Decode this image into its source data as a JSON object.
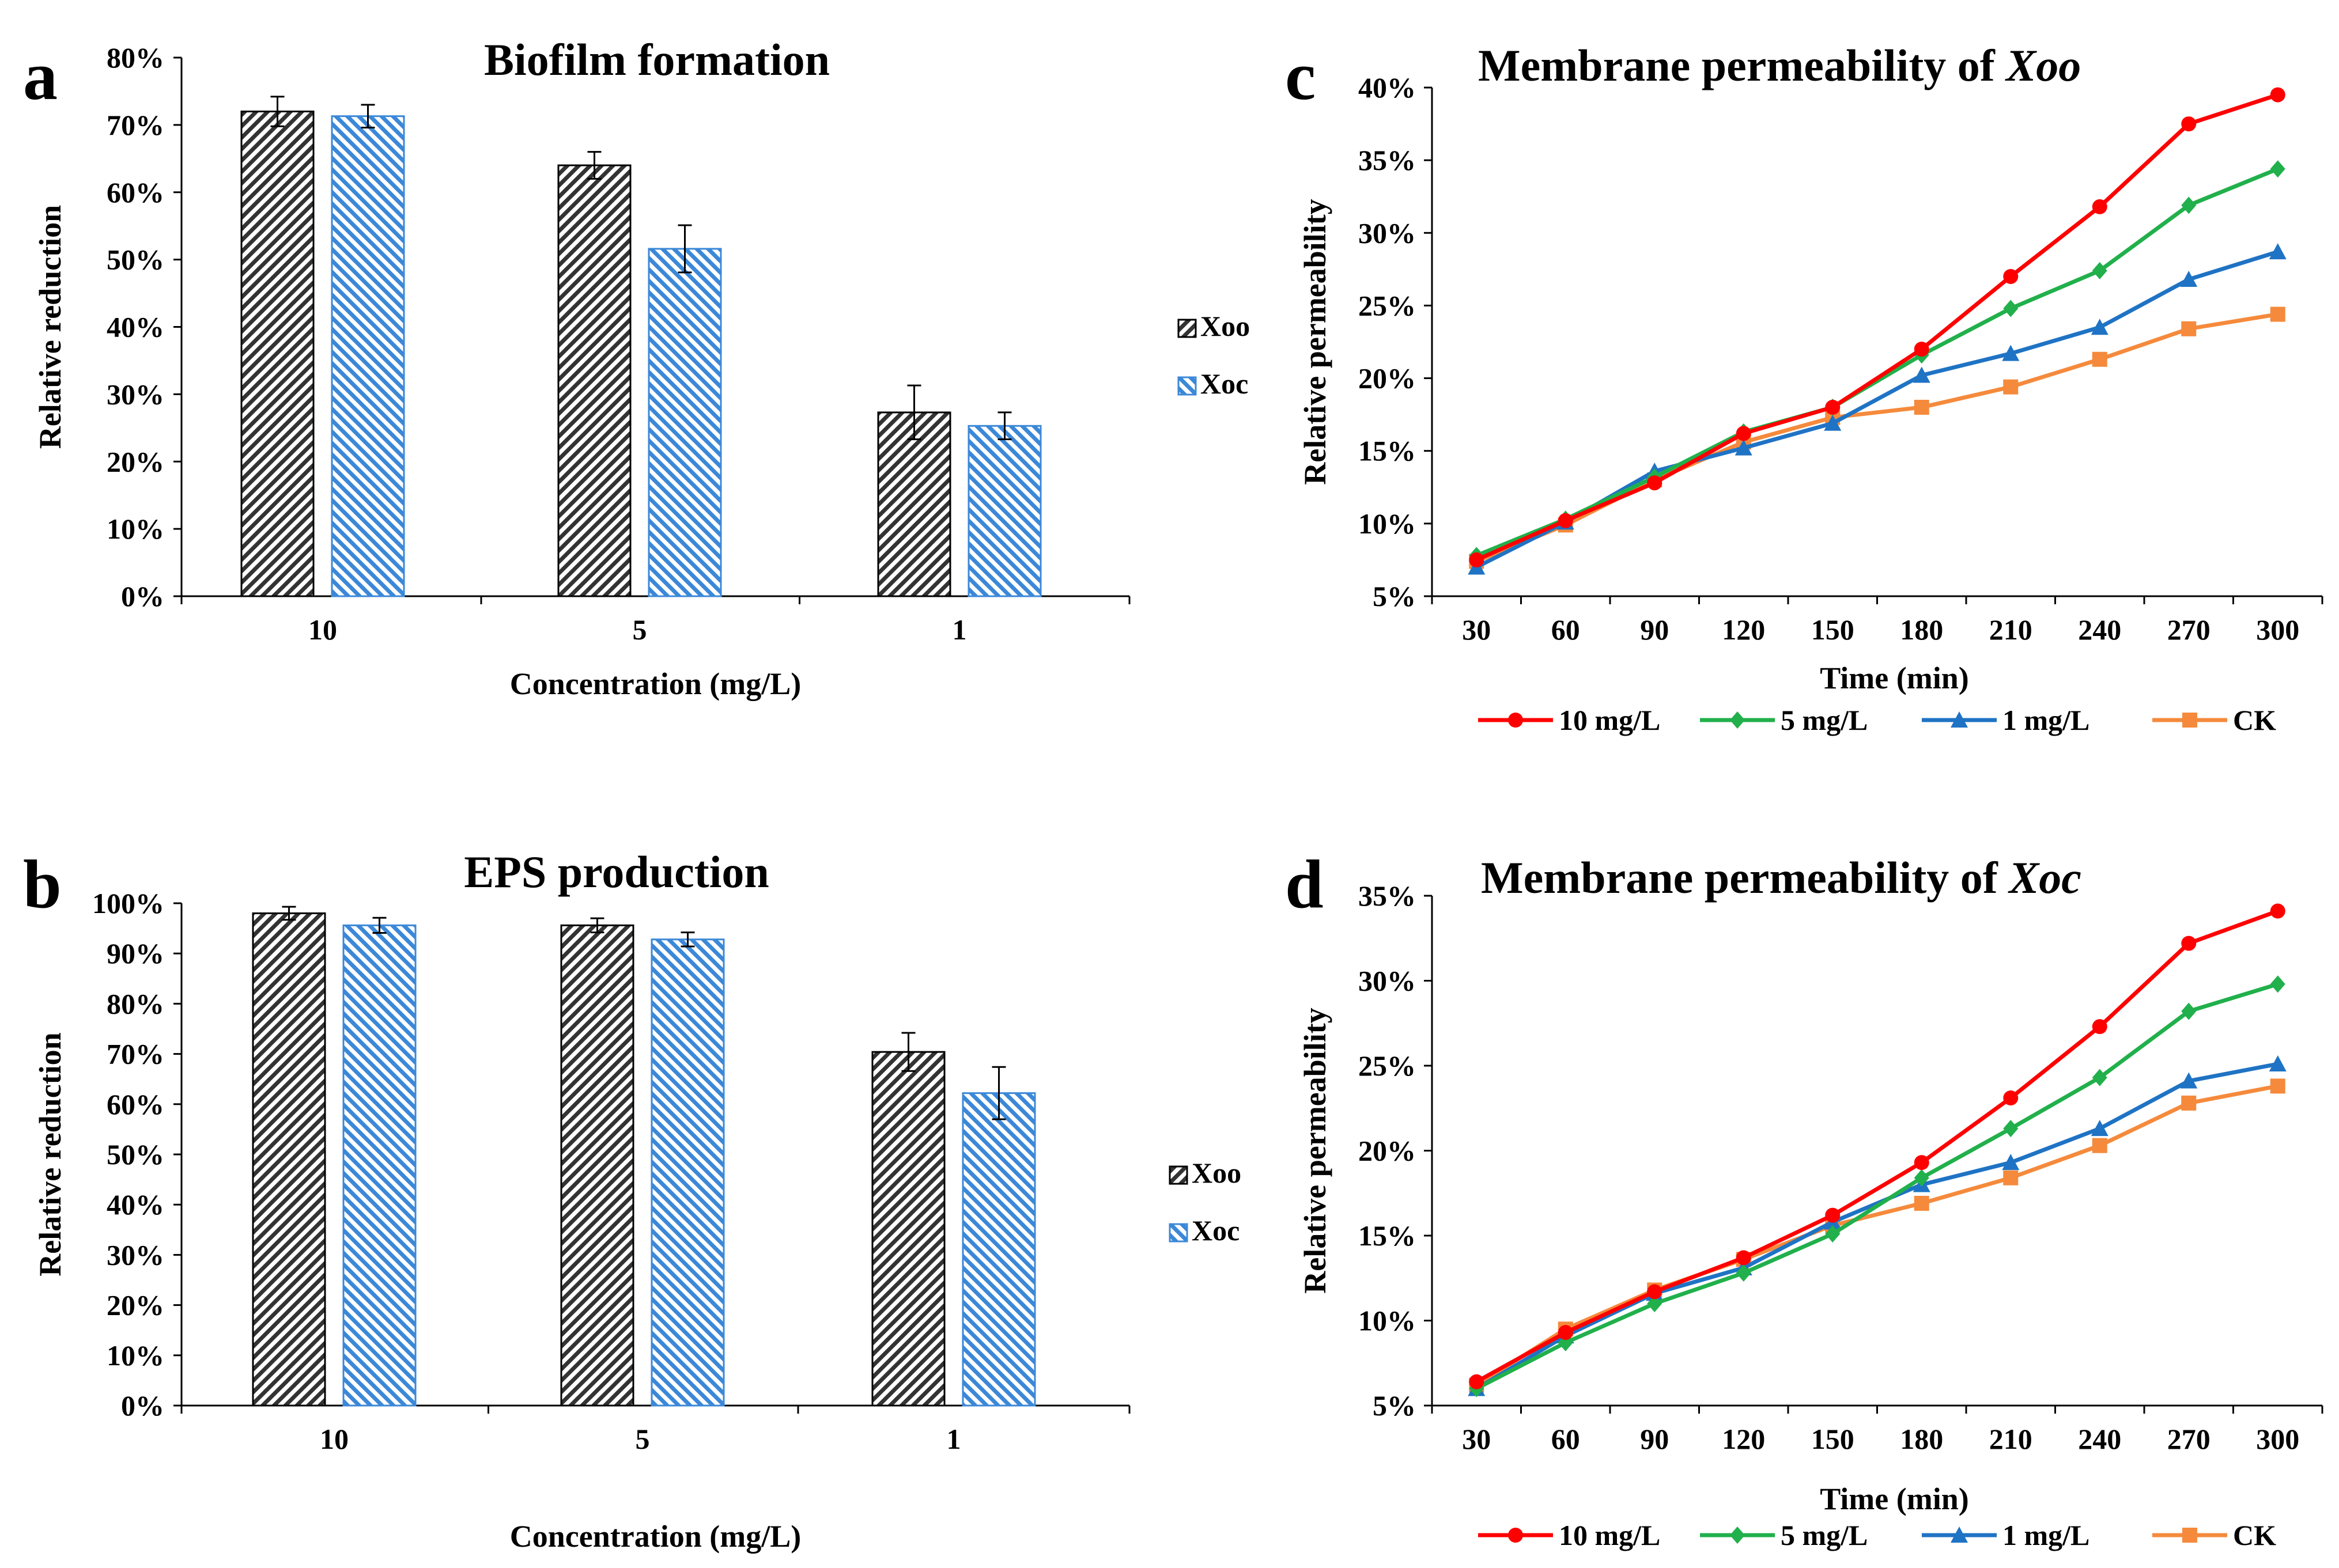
{
  "charts": [
    {
      "panel": "a",
      "type": "bar",
      "title": "Biofilm formation",
      "xlabel": "Concentration (mg/L)",
      "ylabel": "Relative reduction",
      "ylim": [
        0,
        80
      ],
      "yticks": [
        "0%",
        "10%",
        "20%",
        "30%",
        "40%",
        "50%",
        "60%",
        "70%",
        "80%"
      ],
      "categories": [
        "10",
        "5",
        "1"
      ],
      "series": [
        {
          "name": "Xoo",
          "values": [
            72,
            64,
            27.3
          ],
          "errors": [
            2.2,
            2.0,
            4.0
          ],
          "color": "#333333"
        },
        {
          "name": "Xoc",
          "values": [
            71.3,
            51.6,
            25.3
          ],
          "errors": [
            1.7,
            3.5,
            2.0
          ],
          "color": "#3c88d8"
        }
      ],
      "legend": "right"
    },
    {
      "panel": "b",
      "type": "bar",
      "title": "EPS production",
      "xlabel": "Concentration (mg/L)",
      "ylabel": "Relative reduction",
      "ylim": [
        0,
        100
      ],
      "yticks": [
        "0%",
        "10%",
        "20%",
        "30%",
        "40%",
        "50%",
        "60%",
        "70%",
        "80%",
        "90%",
        "100%"
      ],
      "categories": [
        "10",
        "5",
        "1"
      ],
      "series": [
        {
          "name": "Xoo",
          "values": [
            98,
            95.6,
            70.4
          ],
          "errors": [
            1.3,
            1.4,
            3.8
          ],
          "color": "#333333"
        },
        {
          "name": "Xoc",
          "values": [
            95.6,
            92.8,
            62.2
          ],
          "errors": [
            1.5,
            1.4,
            5.2
          ],
          "color": "#3c88d8"
        }
      ],
      "legend": "right"
    },
    {
      "panel": "c",
      "type": "line",
      "title_main": "Membrane permeability of ",
      "title_italic": "Xoo",
      "xlabel": "Time (min)",
      "ylabel": "Relative permeability",
      "ylim": [
        5,
        40
      ],
      "yticks": [
        "5%",
        "10%",
        "15%",
        "20%",
        "25%",
        "30%",
        "35%",
        "40%"
      ],
      "x": [
        "30",
        "60",
        "90",
        "120",
        "150",
        "180",
        "210",
        "240",
        "270",
        "300"
      ],
      "series": [
        {
          "name": "10 mg/L",
          "color": "#ff0000",
          "marker": "circle",
          "values": [
            7.5,
            10.2,
            12.8,
            16.2,
            18.0,
            22.0,
            27.0,
            31.8,
            37.5,
            39.5
          ]
        },
        {
          "name": "5 mg/L",
          "color": "#21b04b",
          "marker": "diamond",
          "values": [
            7.8,
            10.3,
            13.2,
            16.3,
            18.0,
            21.6,
            24.8,
            27.4,
            31.9,
            34.4
          ]
        },
        {
          "name": "1 mg/L",
          "color": "#1f73c4",
          "marker": "triangle",
          "values": [
            7.0,
            10.1,
            13.6,
            15.2,
            16.9,
            20.2,
            21.7,
            23.5,
            26.8,
            28.7
          ]
        },
        {
          "name": "CK",
          "color": "#f58a3c",
          "marker": "square",
          "values": [
            7.4,
            9.9,
            13.0,
            15.6,
            17.3,
            18.0,
            19.4,
            21.3,
            23.4,
            24.4
          ]
        }
      ],
      "legend": "bottom"
    },
    {
      "panel": "d",
      "type": "line",
      "title_main": "Membrane permeability of ",
      "title_italic": "Xoc",
      "xlabel": "Time (min)",
      "ylabel": "Relative permeability",
      "ylim": [
        5,
        35
      ],
      "yticks": [
        "5%",
        "10%",
        "15%",
        "20%",
        "25%",
        "30%",
        "35%"
      ],
      "x": [
        "30",
        "60",
        "90",
        "120",
        "150",
        "180",
        "210",
        "240",
        "270",
        "300"
      ],
      "series": [
        {
          "name": "10 mg/L",
          "color": "#ff0000",
          "marker": "circle",
          "values": [
            6.4,
            9.3,
            11.7,
            13.7,
            16.2,
            19.3,
            23.1,
            27.3,
            32.2,
            34.1
          ]
        },
        {
          "name": "5 mg/L",
          "color": "#21b04b",
          "marker": "diamond",
          "values": [
            6.0,
            8.7,
            11.0,
            12.8,
            15.1,
            18.4,
            21.3,
            24.3,
            28.2,
            29.8
          ]
        },
        {
          "name": "1 mg/L",
          "color": "#1f73c4",
          "marker": "triangle",
          "values": [
            6.0,
            9.1,
            11.6,
            13.1,
            15.8,
            18.0,
            19.3,
            21.3,
            24.1,
            25.1
          ]
        },
        {
          "name": "CK",
          "color": "#f58a3c",
          "marker": "square",
          "values": [
            6.2,
            9.5,
            11.8,
            13.6,
            15.6,
            16.9,
            18.4,
            20.3,
            22.8,
            23.8
          ]
        }
      ],
      "legend": "bottom"
    }
  ]
}
